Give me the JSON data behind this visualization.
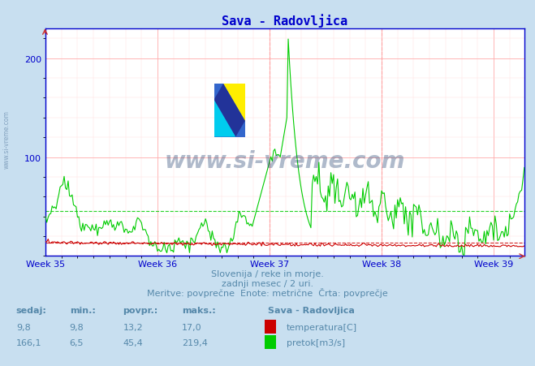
{
  "title": "Sava - Radovljica",
  "title_color": "#0000cc",
  "bg_color": "#c8dff0",
  "plot_bg_color": "#ffffff",
  "grid_color_major": "#ffaaaa",
  "grid_color_minor": "#ffdddd",
  "axis_color": "#0000cc",
  "text_color": "#5588aa",
  "watermark": "www.si-vreme.com",
  "watermark_color": "#1a3a6a",
  "sidebar_text": "www.si-vreme.com",
  "subtitle1": "Slovenija / reke in morje.",
  "subtitle2": "zadnji mesec / 2 uri.",
  "subtitle3": "Meritve: povprečne  Enote: metrične  Črta: povprečje",
  "xlabels": [
    "Week 35",
    "Week 36",
    "Week 37",
    "Week 38",
    "Week 39"
  ],
  "ylim": [
    0,
    230
  ],
  "yticks": [
    100,
    200
  ],
  "avg_temp": 13.2,
  "avg_flow": 45.4,
  "temp_color": "#cc0000",
  "flow_color": "#00cc00",
  "legend_title": "Sava - Radovljica",
  "legend_items": [
    {
      "label": "temperatura[C]",
      "color": "#cc0000"
    },
    {
      "label": "pretok[m3/s]",
      "color": "#00cc00"
    }
  ],
  "table_headers": [
    "sedaj:",
    "min.:",
    "povpr.:",
    "maks.:"
  ],
  "table_temp": [
    "9,8",
    "9,8",
    "13,2",
    "17,0"
  ],
  "table_flow": [
    "166,1",
    "6,5",
    "45,4",
    "219,4"
  ]
}
